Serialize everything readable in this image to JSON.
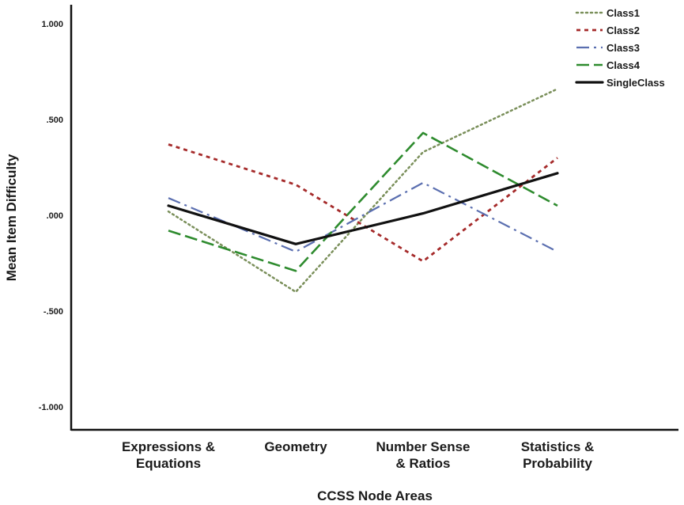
{
  "chart_data": {
    "type": "line",
    "xlabel": "CCSS Node Areas",
    "ylabel": "Mean Item Difficulty",
    "ylim": [
      -1.1,
      1.1
    ],
    "yticks": [
      1.0,
      0.5,
      0.0,
      -0.5,
      -1.0
    ],
    "ytick_labels": [
      "1.000",
      ".500",
      ".000",
      "-.500",
      "-1.000"
    ],
    "categories": [
      [
        "Expressions &",
        "Equations"
      ],
      [
        "Geometry"
      ],
      [
        "Number Sense",
        "& Ratios"
      ],
      [
        "Statistics &",
        "Probability"
      ]
    ],
    "grid": false,
    "legend_position": "top-right",
    "series": [
      {
        "name": "Class1",
        "values": [
          0.02,
          -0.4,
          0.33,
          0.66
        ],
        "color": "#7a8f5a",
        "style": "dotted"
      },
      {
        "name": "Class2",
        "values": [
          0.37,
          0.16,
          -0.24,
          0.3
        ],
        "color": "#a52a2a",
        "style": "short-dash"
      },
      {
        "name": "Class3",
        "values": [
          0.09,
          -0.19,
          0.17,
          -0.19
        ],
        "color": "#5b6fb0",
        "style": "dash-dot"
      },
      {
        "name": "Class4",
        "values": [
          -0.08,
          -0.29,
          0.43,
          0.05
        ],
        "color": "#2e8b2e",
        "style": "long-dash"
      },
      {
        "name": "SingleClass",
        "values": [
          0.05,
          -0.15,
          0.01,
          0.22
        ],
        "color": "#111111",
        "style": "solid"
      }
    ]
  }
}
